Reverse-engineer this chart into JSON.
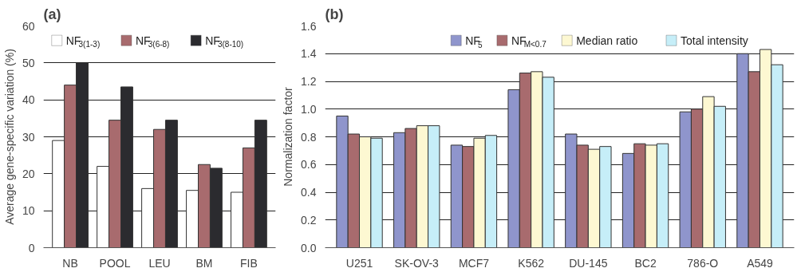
{
  "chart_data": [
    {
      "type": "bar",
      "title": "(a)",
      "ylabel": "Average gene-specific variation (%)",
      "categories": [
        "NB",
        "POOL",
        "LEU",
        "BM",
        "FIB"
      ],
      "series": [
        {
          "name": "NF$_{3(1-3)}$",
          "color": "#ffffff",
          "values": [
            29,
            22,
            16,
            15.5,
            15
          ]
        },
        {
          "name": "NF$_{3(6-8)}$",
          "color": "#a86b6e",
          "values": [
            44,
            34.5,
            32,
            22.5,
            27
          ]
        },
        {
          "name": "NF$_{3(8-10)}$",
          "color": "#2b2b2f",
          "values": [
            50,
            43.5,
            34.5,
            21.5,
            34.5
          ]
        }
      ],
      "ylim": [
        0,
        60
      ],
      "yticks": [
        0,
        10,
        20,
        30,
        40,
        50,
        60
      ],
      "grid": "y",
      "legend": "top"
    },
    {
      "type": "bar",
      "title": "(b)",
      "ylabel": "Normalization factor",
      "categories": [
        "U251",
        "SK-OV-3",
        "MCF7",
        "K562",
        "DU-145",
        "BC2",
        "786-O",
        "A549"
      ],
      "series": [
        {
          "name": "NF$_{5}$",
          "color": "#8f95cc",
          "values": [
            0.95,
            0.83,
            0.74,
            1.14,
            0.82,
            0.68,
            0.98,
            1.4
          ]
        },
        {
          "name": "NF$_{M<0.7}$",
          "color": "#a86b6e",
          "values": [
            0.82,
            0.86,
            0.73,
            1.26,
            0.74,
            0.75,
            1.0,
            1.27
          ]
        },
        {
          "name": "Median ratio",
          "color": "#fdf8d2",
          "values": [
            0.8,
            0.88,
            0.79,
            1.27,
            0.71,
            0.74,
            1.09,
            1.43
          ]
        },
        {
          "name": "Total intensity",
          "color": "#c6eef8",
          "values": [
            0.79,
            0.88,
            0.81,
            1.23,
            0.73,
            0.75,
            1.02,
            1.32
          ]
        }
      ],
      "ylim": [
        0,
        1.6
      ],
      "yticks": [
        {
          "value": 0,
          "label": "0.0"
        },
        0.2,
        0.4,
        0.6,
        0.8,
        {
          "value": 1,
          "label": "1.0"
        },
        1.2,
        1.4,
        1.6
      ],
      "grid": "y",
      "legend": "top right"
    }
  ]
}
